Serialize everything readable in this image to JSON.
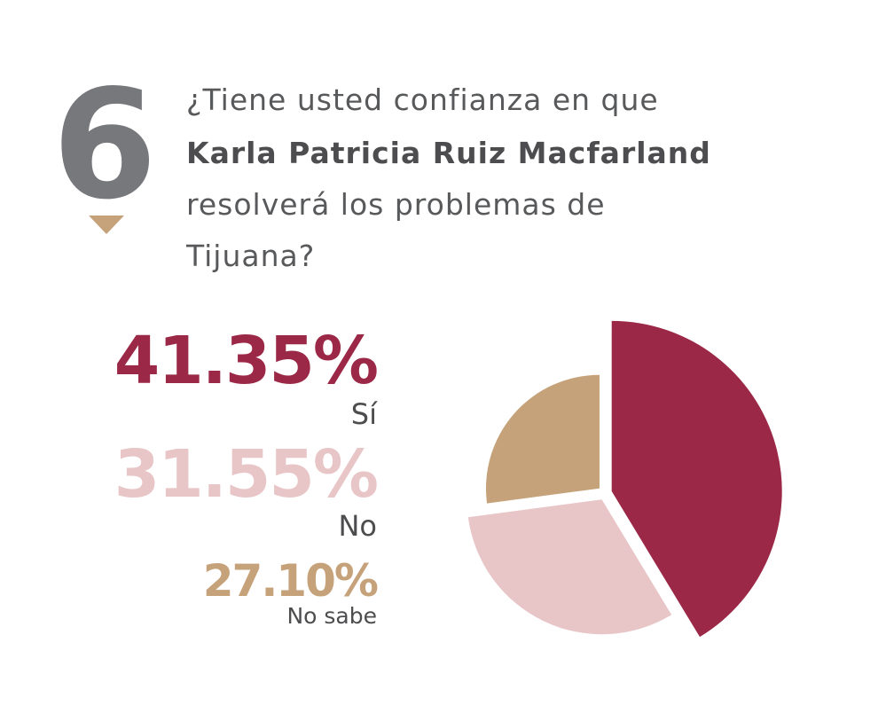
{
  "chart_data": {
    "type": "pie",
    "number": "6",
    "title_lines": [
      "¿Tiene usted confianza en que",
      "Karla Patricia Ruiz Macfarland",
      "resolverá los problemas de",
      "Tijuana?"
    ],
    "categories": [
      "Sí",
      "No",
      "No sabe"
    ],
    "values": [
      41.35,
      31.55,
      27.1
    ],
    "value_labels": [
      "41.35%",
      "31.55%",
      "27.10%"
    ],
    "colors": [
      "#9b2846",
      "#e8c5c6",
      "#c6a27a"
    ]
  }
}
